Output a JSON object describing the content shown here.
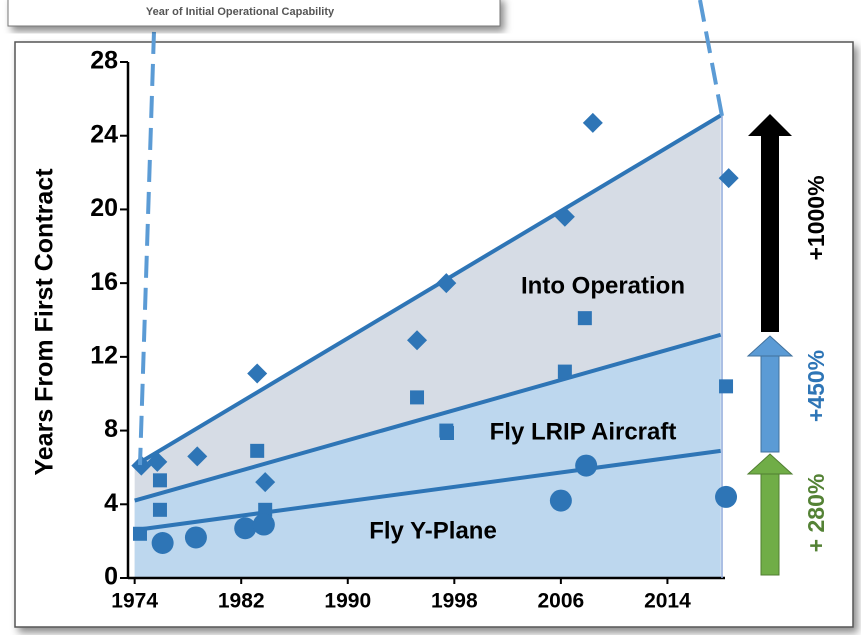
{
  "inset_caption": "Year of Initial Operational Capability",
  "annotations": [
    "+ 280%",
    "+450%",
    "+1000%"
  ],
  "chart_data": {
    "type": "scatter",
    "ylabel": "Years From First Contract",
    "xlim": [
      1973.5,
      2020.5
    ],
    "xticks": [
      1974,
      1982,
      1990,
      1998,
      2006,
      2014
    ],
    "ylim": [
      0,
      28
    ],
    "yticks": [
      0,
      4,
      8,
      12,
      16,
      20,
      24,
      28
    ],
    "series": [
      {
        "name": "Into Operation",
        "color": "#2e75b6",
        "marker": "diamond",
        "fill": "#d6dce5",
        "x": [
          1974.5,
          1975.7,
          1978.7,
          1983.2,
          1983.8,
          1995.2,
          1997.4,
          2006.3,
          2008.4,
          2018.6
        ],
        "values": [
          6.1,
          6.3,
          6.6,
          11.1,
          5.2,
          12.9,
          16.0,
          19.6,
          24.7,
          21.7
        ],
        "trend": {
          "x": [
            1974,
            2018
          ],
          "values": [
            6.1,
            25.1
          ]
        }
      },
      {
        "name": "Fly LRIP Aircraft",
        "color": "#2e75b6",
        "marker": "square",
        "fill": "#bdd7ee",
        "x": [
          1974.4,
          1975.9,
          1975.9,
          1983.2,
          1983.8,
          1995.2,
          1997.4,
          2006.3,
          2007.8,
          2018.4
        ],
        "values": [
          2.4,
          5.3,
          3.7,
          6.9,
          3.7,
          9.8,
          8.0,
          11.2,
          14.1,
          10.4
        ],
        "trend": {
          "x": [
            1974,
            2018
          ],
          "values": [
            4.2,
            13.2
          ]
        }
      },
      {
        "name": "Fly Y-Plane",
        "color": "#2e75b6",
        "marker": "circle",
        "fill": "#bdd7ee",
        "x": [
          1976.1,
          1978.6,
          1982.3,
          1983.7,
          2006.0,
          2007.9,
          2018.4
        ],
        "values": [
          1.9,
          2.2,
          2.7,
          2.9,
          4.2,
          6.1,
          4.4
        ],
        "trend": {
          "x": [
            1974,
            2018
          ],
          "values": [
            2.6,
            6.9
          ]
        }
      }
    ]
  }
}
